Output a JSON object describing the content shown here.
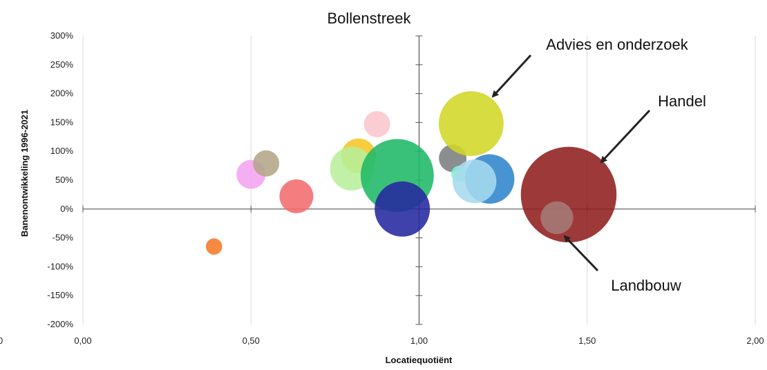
{
  "chart_data": {
    "type": "scatter",
    "title": "Bollenstreek",
    "xlabel": "Locatiequotiënt",
    "ylabel": "Banenontwikkeling 1996-2021",
    "xlim": [
      0,
      2
    ],
    "ylim": [
      -200,
      300
    ],
    "x_ticks": [
      0,
      0.5,
      1,
      1.5,
      2
    ],
    "x_tick_labels": [
      "0,00",
      "0,50",
      "1,00",
      "1,50",
      "2,00"
    ],
    "y_ticks": [
      300,
      250,
      200,
      150,
      100,
      50,
      0,
      -50,
      -100,
      -150,
      -200
    ],
    "y_tick_labels": [
      "300%",
      "250%",
      "200%",
      "150%",
      "100%",
      "50%",
      "0%",
      "-50%",
      "-100%",
      "-150%",
      "-200%"
    ],
    "grid": "vertical",
    "quadrant_lines": {
      "x": 1,
      "y": 0
    },
    "points": [
      {
        "x": 0.39,
        "y": -65,
        "size": 0.35,
        "color": "#f47a2a"
      },
      {
        "x": 0.5,
        "y": 60,
        "size": 1.1,
        "color": "#f5a3f0"
      },
      {
        "x": 0.545,
        "y": 79,
        "size": 0.9,
        "color": "#b3a687"
      },
      {
        "x": 0.635,
        "y": 22,
        "size": 1.5,
        "color": "#f36b6e"
      },
      {
        "x": 0.82,
        "y": 92,
        "size": 1.6,
        "color": "#f6c624"
      },
      {
        "x": 0.8,
        "y": 70,
        "size": 2.5,
        "color": "#b7ef9b"
      },
      {
        "x": 0.875,
        "y": 147,
        "size": 0.9,
        "color": "#f8c6cc"
      },
      {
        "x": 0.935,
        "y": 58,
        "size": 7.0,
        "color": "#1fb866"
      },
      {
        "x": 0.95,
        "y": 0,
        "size": 4.0,
        "color": "#26289f"
      },
      {
        "x": 1.1,
        "y": 88,
        "size": 1.0,
        "color": "#7a7e80"
      },
      {
        "x": 1.12,
        "y": 61,
        "size": 0.35,
        "color": "#7cf5ce"
      },
      {
        "x": 1.21,
        "y": 52,
        "size": 3.2,
        "color": "#2f85cc"
      },
      {
        "x": 1.165,
        "y": 48,
        "size": 2.5,
        "color": "#a6dbee"
      },
      {
        "x": 1.155,
        "y": 148,
        "size": 5.5,
        "color": "#d2d725"
      },
      {
        "x": 1.445,
        "y": 25,
        "size": 12.0,
        "color": "#911e1e"
      },
      {
        "x": 1.41,
        "y": -15,
        "size": 1.4,
        "color": "#a57a76"
      }
    ],
    "annotations": [
      {
        "text": "Advies en onderzoek",
        "x": 1.155,
        "y": 148
      },
      {
        "text": "Handel",
        "x": 1.445,
        "y": 25
      },
      {
        "text": "Landbouw",
        "x": 1.41,
        "y": -15
      }
    ]
  },
  "edge_tick_fragment": "0"
}
